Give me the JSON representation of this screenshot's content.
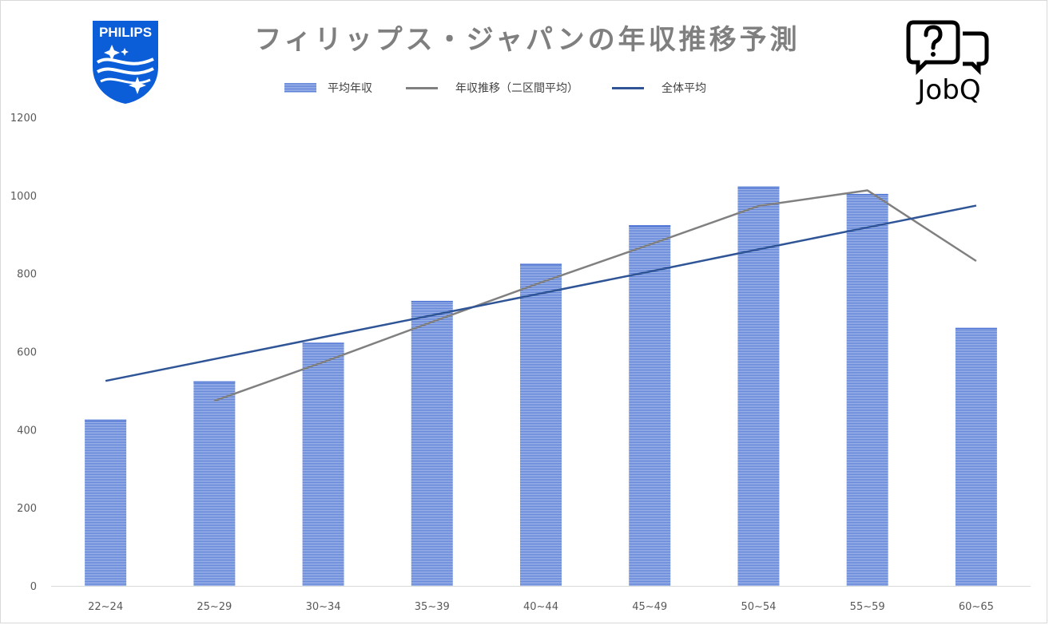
{
  "title": "フィリップス・ジャパンの年収推移予測",
  "logos": {
    "left": {
      "text": "PHILIPS",
      "icon": "philips-shield-icon"
    },
    "right": {
      "text": "JobQ",
      "icon": "jobq-speech-bubbles-icon"
    }
  },
  "colors": {
    "bar": "#5b7fd6",
    "bar_stripe": "#a7bbeb",
    "trend": "#808080",
    "overall": "#2f5597",
    "axis_text": "#595959",
    "title": "#7f7f7f"
  },
  "chart_data": {
    "type": "bar",
    "categories": [
      "22~24",
      "25~29",
      "30~34",
      "35~39",
      "40~44",
      "45~49",
      "50~54",
      "55~59",
      "60~65"
    ],
    "series": [
      {
        "name": "平均年収",
        "kind": "bar",
        "values": [
          425,
          523,
          622,
          729,
          824,
          923,
          1022,
          1003,
          660
        ]
      },
      {
        "name": "年収推移（二区間平均）",
        "kind": "line",
        "values": [
          null,
          474,
          573,
          676,
          777,
          874,
          973,
          1013,
          832
        ]
      },
      {
        "name": "全体平均",
        "kind": "line",
        "values": [
          525,
          581,
          637,
          693,
          749,
          805,
          862,
          918,
          974
        ]
      }
    ],
    "yticks": [
      0,
      200,
      400,
      600,
      800,
      1000,
      1200
    ],
    "ylim": [
      0,
      1200
    ],
    "grid": false,
    "legend_position": "top"
  }
}
